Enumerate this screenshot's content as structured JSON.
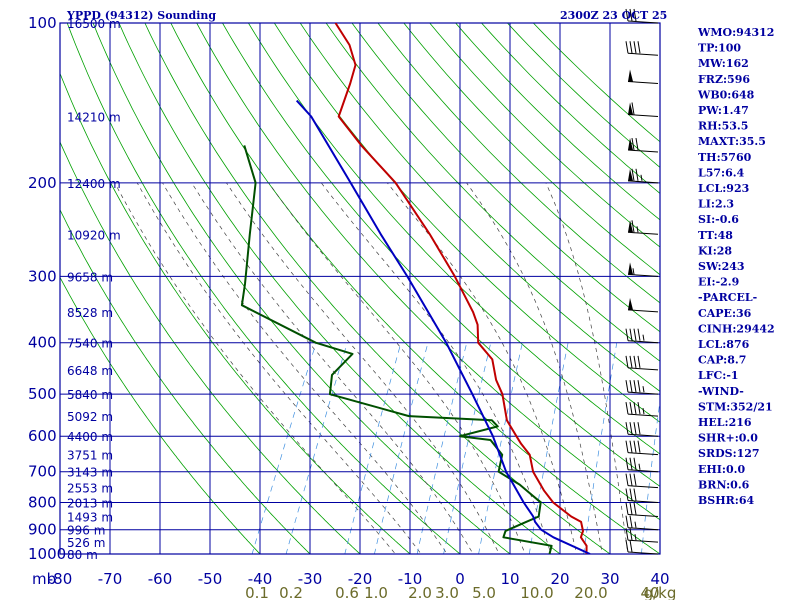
{
  "header": {
    "title": "YPPD (94312) Sounding",
    "datetime": "2300Z 23 OCT 25"
  },
  "colors": {
    "grid": "#0000a0",
    "temperature": "#c00000",
    "dewpoint": "#005000",
    "parcel": "#0000c0",
    "dry_adiabat": "#00a000",
    "moist_adiabat": "#404040",
    "mixing_ratio": "#4090e0",
    "mixing_label": "#6b6b2a"
  },
  "indices": [
    "WMO:94312",
    "TP:100",
    "MW:162",
    "FRZ:596",
    "WB0:648",
    "PW:1.47",
    "RH:53.5",
    "MAXT:35.5",
    "TH:5760",
    "L57:6.4",
    "LCL:923",
    "LI:2.3",
    "SI:-0.6",
    "TT:48",
    "KI:28",
    "SW:243",
    "EI:-2.9",
    "-PARCEL-",
    "CAPE:36",
    "CINH:29442",
    "LCL:876",
    "CAP:8.7",
    "LFC:-1",
    "-WIND-",
    "STM:352/21",
    "HEL:216",
    "SHR+:0.0",
    "SRDS:127",
    "EHI:0.0",
    "BRN:0.6",
    "BSHR:64"
  ],
  "chart_data": {
    "type": "line",
    "title": "YPPD (94312) Sounding",
    "xlabel": "",
    "ylabel": "mb",
    "x_unit": "°C",
    "y_unit": "mb",
    "y_scale": "log",
    "y_reversed": true,
    "xlim": [
      -80,
      40
    ],
    "ylim": [
      1000,
      100
    ],
    "grid": true,
    "pressure_ticks": [
      "100",
      "200",
      "300",
      "400",
      "500",
      "600",
      "700",
      "800",
      "900",
      "1000"
    ],
    "pressure_values": [
      100,
      200,
      300,
      400,
      500,
      600,
      700,
      800,
      900,
      1000
    ],
    "temperature_ticks": [
      "-80",
      "-70",
      "-60",
      "-50",
      "-40",
      "-30",
      "-20",
      "-10",
      "0",
      "10",
      "20",
      "30",
      "40"
    ],
    "temperature_values": [
      -80,
      -70,
      -60,
      -50,
      -40,
      -30,
      -20,
      -10,
      0,
      10,
      20,
      30,
      40
    ],
    "height_ticks": [
      {
        "p": 100,
        "label": "16500 m"
      },
      {
        "p": 150,
        "label": "14210 m"
      },
      {
        "p": 200,
        "label": "12400 m"
      },
      {
        "p": 250,
        "label": "10920 m"
      },
      {
        "p": 300,
        "label": "9658 m"
      },
      {
        "p": 350,
        "label": "8528 m"
      },
      {
        "p": 400,
        "label": "7540 m"
      },
      {
        "p": 450,
        "label": "6648 m"
      },
      {
        "p": 500,
        "label": "5840 m"
      },
      {
        "p": 550,
        "label": "5092 m"
      },
      {
        "p": 600,
        "label": "4400 m"
      },
      {
        "p": 650,
        "label": "3751 m"
      },
      {
        "p": 700,
        "label": "3143 m"
      },
      {
        "p": 750,
        "label": "2553 m"
      },
      {
        "p": 800,
        "label": "2013 m"
      },
      {
        "p": 850,
        "label": "1493 m"
      },
      {
        "p": 900,
        "label": "996 m"
      },
      {
        "p": 950,
        "label": "526 m"
      },
      {
        "p": 1000,
        "label": "80 m"
      }
    ],
    "mixing_ratio_labels": [
      "0.1",
      "0.2",
      "0.6",
      "1.0",
      "2.0",
      "3.0",
      "5.0",
      "10.0",
      "20.0",
      "40",
      "g/kg"
    ],
    "mixing_ratio_values": [
      0.1,
      0.2,
      0.6,
      1.0,
      2.0,
      3.0,
      5.0,
      10.0,
      20.0,
      40
    ],
    "series": [
      {
        "name": "",
        "key": "temperature",
        "points": [
          [
            1000,
            25.3
          ],
          [
            965,
            24.5
          ],
          [
            930,
            22.5
          ],
          [
            905,
            22.3
          ],
          [
            870,
            21.0
          ],
          [
            850,
            18.5
          ],
          [
            800,
            13.5
          ],
          [
            760,
            10.5
          ],
          [
            700,
            6.4
          ],
          [
            650,
            4.0
          ],
          [
            620,
            1.2
          ],
          [
            600,
            -0.5
          ],
          [
            560,
            -4.0
          ],
          [
            500,
            -7.5
          ],
          [
            470,
            -10.2
          ],
          [
            430,
            -13.0
          ],
          [
            400,
            -17.5
          ],
          [
            370,
            -19.4
          ],
          [
            350,
            -21.6
          ],
          [
            300,
            -28.8
          ],
          [
            250,
            -38.0
          ],
          [
            200,
            -50.0
          ],
          [
            170,
            -60.6
          ],
          [
            150,
            -68.0
          ],
          [
            130,
            -69.0
          ],
          [
            120,
            -69.8
          ],
          [
            110,
            -73.0
          ],
          [
            100,
            -78.0
          ]
        ]
      },
      {
        "name": "",
        "key": "dewpoint",
        "points": [
          [
            1000,
            17.9
          ],
          [
            965,
            17.5
          ],
          [
            930,
            7.0
          ],
          [
            905,
            6.8
          ],
          [
            870,
            10.0
          ],
          [
            850,
            12.0
          ],
          [
            800,
            11.0
          ],
          [
            740,
            5.0
          ],
          [
            700,
            -0.5
          ],
          [
            650,
            -1.5
          ],
          [
            610,
            -5.3
          ],
          [
            600,
            -11.8
          ],
          [
            575,
            -5.2
          ],
          [
            560,
            -7.0
          ],
          [
            550,
            -24.0
          ],
          [
            500,
            -42.0
          ],
          [
            460,
            -43.5
          ],
          [
            420,
            -41.5
          ],
          [
            400,
            -50.0
          ],
          [
            340,
            -68.5
          ],
          [
            310,
            -70.0
          ],
          [
            250,
            -74.0
          ],
          [
            200,
            -78.0
          ],
          [
            170,
            -84.0
          ]
        ]
      },
      {
        "name": "",
        "key": "parcel",
        "points": [
          [
            1000,
            26.0
          ],
          [
            930,
            17.0
          ],
          [
            900,
            13.8
          ],
          [
            870,
            11.8
          ],
          [
            850,
            10.9
          ],
          [
            800,
            7.6
          ],
          [
            700,
            1.0
          ],
          [
            600,
            -5.2
          ],
          [
            500,
            -13.5
          ],
          [
            400,
            -23.9
          ],
          [
            300,
            -38.3
          ],
          [
            250,
            -47.8
          ],
          [
            200,
            -59.0
          ],
          [
            150,
            -73.5
          ],
          [
            140,
            -78.0
          ]
        ]
      }
    ],
    "wind_barbs": [
      {
        "p": 1000,
        "dir": 0,
        "kt": 20
      },
      {
        "p": 950,
        "dir": 0,
        "kt": 25
      },
      {
        "p": 900,
        "dir": 0,
        "kt": 25
      },
      {
        "p": 850,
        "dir": 350,
        "kt": 30
      },
      {
        "p": 800,
        "dir": 350,
        "kt": 30
      },
      {
        "p": 750,
        "dir": 355,
        "kt": 30
      },
      {
        "p": 700,
        "dir": 0,
        "kt": 35
      },
      {
        "p": 650,
        "dir": 5,
        "kt": 40
      },
      {
        "p": 600,
        "dir": 5,
        "kt": 40
      },
      {
        "p": 550,
        "dir": 10,
        "kt": 45
      },
      {
        "p": 500,
        "dir": 10,
        "kt": 45
      },
      {
        "p": 450,
        "dir": 15,
        "kt": 40
      },
      {
        "p": 400,
        "dir": 15,
        "kt": 45
      },
      {
        "p": 350,
        "dir": 10,
        "kt": 50
      },
      {
        "p": 300,
        "dir": 5,
        "kt": 55
      },
      {
        "p": 250,
        "dir": 0,
        "kt": 65
      },
      {
        "p": 200,
        "dir": 0,
        "kt": 75
      },
      {
        "p": 175,
        "dir": 0,
        "kt": 70
      },
      {
        "p": 150,
        "dir": 355,
        "kt": 60
      },
      {
        "p": 130,
        "dir": 0,
        "kt": 50
      },
      {
        "p": 115,
        "dir": 5,
        "kt": 40
      },
      {
        "p": 100,
        "dir": 0,
        "kt": 30
      }
    ]
  }
}
